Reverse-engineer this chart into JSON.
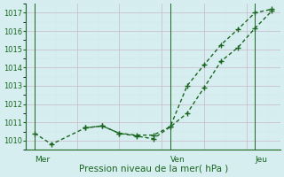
{
  "title": "Pression niveau de la mer( hPa )",
  "bg_color": "#d6eef0",
  "grid_color": "#c0d8da",
  "grid_minor_color": "#e0eeef",
  "line_color": "#1a6620",
  "ylim": [
    1009.5,
    1017.5
  ],
  "yticks": [
    1010,
    1011,
    1012,
    1013,
    1014,
    1015,
    1016,
    1017
  ],
  "day_labels": [
    "Mer",
    "Ven",
    "Jeu"
  ],
  "day_positions": [
    0,
    8,
    13
  ],
  "series1_x": [
    0,
    1,
    3,
    4,
    5,
    6,
    7,
    8,
    9,
    10,
    11,
    12,
    13,
    14
  ],
  "series1_y": [
    1010.4,
    1009.8,
    1010.7,
    1010.8,
    1010.4,
    1010.3,
    1010.3,
    1010.75,
    1011.5,
    1012.9,
    1014.35,
    1015.1,
    1016.15,
    1017.1
  ],
  "series2_x": [
    3,
    4,
    5,
    6,
    7,
    8,
    9,
    10,
    11,
    12,
    13,
    14
  ],
  "series2_y": [
    1010.7,
    1010.8,
    1010.4,
    1010.25,
    1010.1,
    1010.75,
    1013.0,
    1014.15,
    1015.25,
    1016.1,
    1017.0,
    1017.2
  ],
  "xlabel": "Pression niveau de la mer( hPa )",
  "vline_positions": [
    0,
    8,
    13
  ],
  "num_points": 15
}
